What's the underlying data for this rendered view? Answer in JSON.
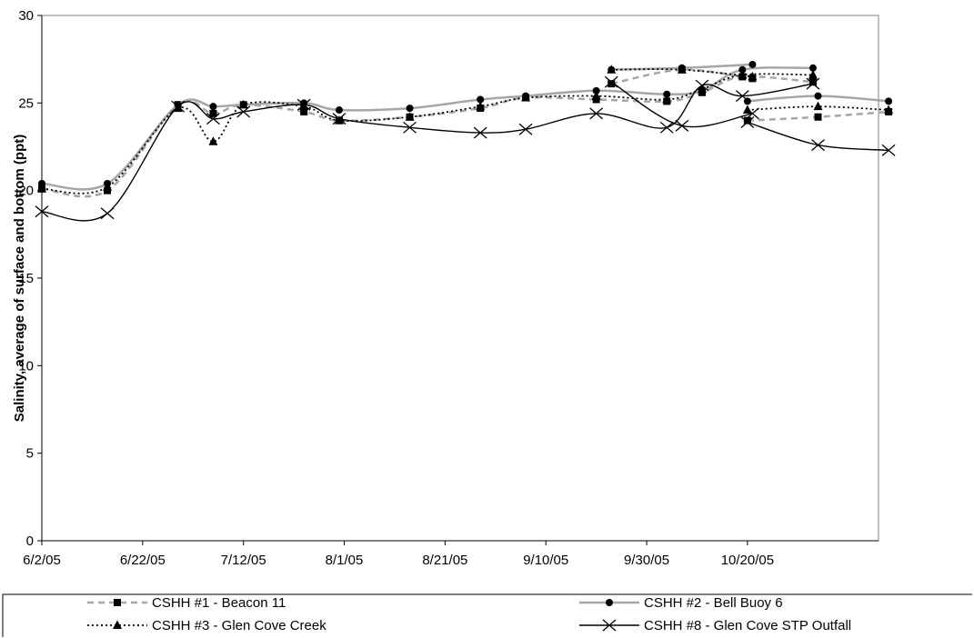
{
  "chart_data": {
    "type": "line",
    "title": "",
    "xlabel": "",
    "ylabel": "Salinity, average of surface and bottom (ppt)",
    "ylim": [
      0,
      30
    ],
    "yticks": [
      0,
      5,
      10,
      15,
      20,
      25,
      30
    ],
    "xlim": [
      "6/2/05",
      "11/15/05"
    ],
    "xticks": [
      "6/2/05",
      "6/22/05",
      "7/12/05",
      "8/1/05",
      "8/21/05",
      "9/10/05",
      "9/30/05",
      "10/20/05"
    ],
    "grid": false,
    "legend_position": "bottom",
    "series": [
      {
        "name": "CSHH #1 - Beacon 11",
        "color": "#a6a6a6",
        "marker": "square",
        "line_style": "dashed",
        "points": [
          [
            "6/2/05",
            20.1
          ],
          [
            "6/15/05",
            20.0
          ],
          [
            "6/29/05",
            24.9
          ],
          [
            "7/6/05",
            24.4
          ],
          [
            "7/12/05",
            24.9
          ],
          [
            "7/24/05",
            24.5
          ],
          [
            "7/31/05",
            24.0
          ],
          [
            "8/14/05",
            24.2
          ],
          [
            "8/28/05",
            24.7
          ],
          [
            "9/6/05",
            25.3
          ],
          [
            "9/20/05",
            25.2
          ],
          [
            "10/4/05",
            25.1
          ],
          [
            "10/11/05",
            25.6
          ],
          [
            "10/19/05",
            26.5
          ],
          [
            "11/2/05",
            26.2
          ],
          [
            "9/23/05",
            26.1
          ],
          [
            "10/7/05",
            26.9
          ],
          [
            "10/21/05",
            26.4
          ],
          [
            "10/20/05",
            24.0
          ],
          [
            "11/3/05",
            24.2
          ],
          [
            "11/17/05",
            24.5
          ]
        ]
      },
      {
        "name": "CSHH #2 - Bell Buoy 6",
        "color": "#a6a6a6",
        "marker": "circle",
        "line_style": "solid",
        "points": [
          [
            "6/2/05",
            20.4
          ],
          [
            "6/15/05",
            20.4
          ],
          [
            "6/29/05",
            24.9
          ],
          [
            "7/6/05",
            24.8
          ],
          [
            "7/12/05",
            24.9
          ],
          [
            "7/24/05",
            25.0
          ],
          [
            "7/31/05",
            24.6
          ],
          [
            "8/14/05",
            24.7
          ],
          [
            "8/28/05",
            25.2
          ],
          [
            "9/6/05",
            25.4
          ],
          [
            "9/20/05",
            25.7
          ],
          [
            "10/4/05",
            25.5
          ],
          [
            "10/11/05",
            25.7
          ],
          [
            "10/19/05",
            26.9
          ],
          [
            "11/2/05",
            27.0
          ],
          [
            "9/23/05",
            26.9
          ],
          [
            "10/7/05",
            27.0
          ],
          [
            "10/21/05",
            27.2
          ],
          [
            "10/20/05",
            25.1
          ],
          [
            "11/3/05",
            25.4
          ],
          [
            "11/17/05",
            25.1
          ]
        ]
      },
      {
        "name": "CSHH #3 - Glen Cove Creek",
        "color": "#000000",
        "marker": "triangle",
        "line_style": "dotted",
        "points": [
          [
            "6/2/05",
            20.1
          ],
          [
            "6/15/05",
            20.2
          ],
          [
            "6/29/05",
            24.7
          ],
          [
            "7/6/05",
            22.8
          ],
          [
            "7/12/05",
            24.9
          ],
          [
            "7/24/05",
            24.8
          ],
          [
            "7/31/05",
            24.0
          ],
          [
            "8/14/05",
            24.2
          ],
          [
            "8/28/05",
            24.8
          ],
          [
            "9/6/05",
            25.3
          ],
          [
            "9/20/05",
            25.4
          ],
          [
            "10/4/05",
            25.2
          ],
          [
            "10/11/05",
            25.8
          ],
          [
            "10/19/05",
            26.6
          ],
          [
            "11/2/05",
            26.6
          ],
          [
            "9/23/05",
            26.9
          ],
          [
            "10/7/05",
            26.9
          ],
          [
            "10/21/05",
            26.5
          ],
          [
            "10/20/05",
            24.6
          ],
          [
            "11/3/05",
            24.8
          ],
          [
            "11/17/05",
            24.6
          ]
        ]
      },
      {
        "name": "CSHH #8 - Glen Cove STP Outfall",
        "color": "#000000",
        "marker": "x",
        "line_style": "solid",
        "points": [
          [
            "6/2/05",
            18.8
          ],
          [
            "6/15/05",
            18.7
          ],
          [
            "6/29/05",
            24.8
          ],
          [
            "7/6/05",
            24.1
          ],
          [
            "7/12/05",
            24.5
          ],
          [
            "7/24/05",
            24.9
          ],
          [
            "7/31/05",
            24.1
          ],
          [
            "8/14/05",
            23.6
          ],
          [
            "8/28/05",
            23.3
          ],
          [
            "9/6/05",
            23.5
          ],
          [
            "9/20/05",
            24.4
          ],
          [
            "10/4/05",
            23.6
          ],
          [
            "10/11/05",
            26.0
          ],
          [
            "10/19/05",
            25.4
          ],
          [
            "11/2/05",
            26.1
          ],
          [
            "9/23/05",
            26.2
          ],
          [
            "10/7/05",
            23.7
          ],
          [
            "10/21/05",
            24.4
          ],
          [
            "10/20/05",
            23.9
          ],
          [
            "11/3/05",
            22.6
          ],
          [
            "11/17/05",
            22.3
          ]
        ]
      }
    ]
  }
}
